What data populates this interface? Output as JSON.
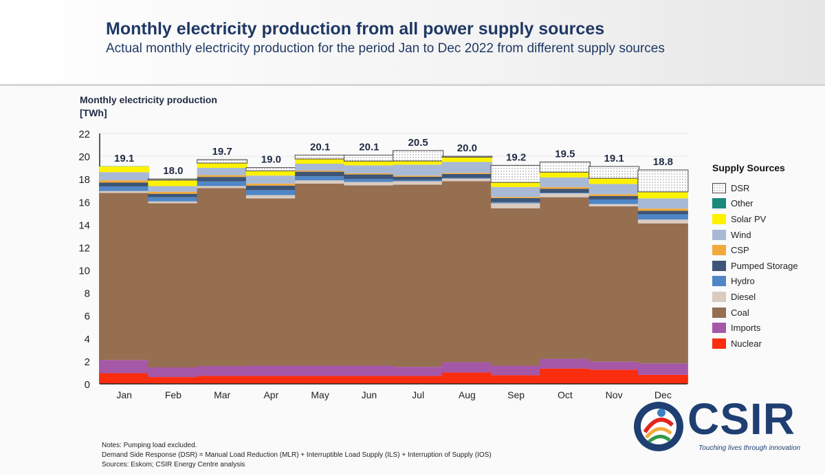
{
  "header": {
    "title": "Monthly electricity production from all power supply sources",
    "subtitle": "Actual monthly electricity production for the period Jan to Dec 2022 from different supply sources"
  },
  "chart_data": {
    "type": "bar",
    "stacked": true,
    "ylabel_line1": "Monthly electricity  production",
    "ylabel_line2": "[TWh]",
    "ylim": [
      0,
      22
    ],
    "yticks": [
      0,
      2,
      4,
      6,
      8,
      10,
      12,
      14,
      16,
      18,
      20,
      22
    ],
    "grid": true,
    "legend_title": "Supply Sources",
    "legend_position": "right",
    "categories": [
      "Jan",
      "Feb",
      "Mar",
      "Apr",
      "May",
      "Jun",
      "Jul",
      "Aug",
      "Sep",
      "Oct",
      "Nov",
      "Dec"
    ],
    "totals": [
      "19.1",
      "18.0",
      "19.7",
      "19.0",
      "20.1",
      "20.1",
      "20.5",
      "20.0",
      "19.2",
      "19.5",
      "19.1",
      "18.8"
    ],
    "series": [
      {
        "name": "Nuclear",
        "color": "#fa2d0f",
        "values": [
          0.94,
          0.6,
          0.7,
          0.7,
          0.7,
          0.7,
          0.7,
          1.0,
          0.76,
          1.35,
          1.25,
          0.8
        ]
      },
      {
        "name": "Imports",
        "color": "#a557a8",
        "values": [
          1.16,
          0.85,
          0.87,
          0.9,
          0.9,
          0.9,
          0.8,
          0.9,
          0.84,
          0.85,
          0.7,
          1.0
        ]
      },
      {
        "name": "Coal",
        "color": "#966e50",
        "values": [
          14.68,
          14.42,
          15.63,
          14.7,
          16.0,
          15.84,
          16.0,
          15.9,
          13.83,
          14.2,
          13.65,
          12.3
        ]
      },
      {
        "name": "Diesel",
        "color": "#d9cbc0",
        "values": [
          0.16,
          0.16,
          0.18,
          0.28,
          0.28,
          0.3,
          0.3,
          0.24,
          0.44,
          0.34,
          0.2,
          0.34
        ]
      },
      {
        "name": "Hydro",
        "color": "#4f86c6",
        "values": [
          0.4,
          0.37,
          0.4,
          0.44,
          0.36,
          0.26,
          0.1,
          0.06,
          0.1,
          0.06,
          0.4,
          0.46
        ]
      },
      {
        "name": "Pumped Storage",
        "color": "#3d5577",
        "values": [
          0.34,
          0.3,
          0.4,
          0.4,
          0.4,
          0.4,
          0.3,
          0.34,
          0.36,
          0.34,
          0.3,
          0.3
        ]
      },
      {
        "name": "CSP",
        "color": "#f2a93b",
        "values": [
          0.2,
          0.18,
          0.16,
          0.18,
          0.1,
          0.1,
          0.1,
          0.1,
          0.1,
          0.16,
          0.16,
          0.2
        ]
      },
      {
        "name": "Wind",
        "color": "#a8b9d6",
        "values": [
          0.72,
          0.5,
          0.64,
          0.7,
          0.6,
          0.7,
          0.96,
          0.96,
          0.87,
          0.84,
          0.9,
          0.9
        ]
      },
      {
        "name": "Solar PV",
        "color": "#fff200",
        "values": [
          0.5,
          0.5,
          0.4,
          0.4,
          0.4,
          0.35,
          0.3,
          0.4,
          0.38,
          0.44,
          0.48,
          0.55
        ]
      },
      {
        "name": "Other",
        "color": "#1a8a7a",
        "values": [
          0.02,
          0.02,
          0.02,
          0.02,
          0.02,
          0.02,
          0.02,
          0.02,
          0.02,
          0.02,
          0.02,
          0.02
        ]
      },
      {
        "name": "DSR",
        "color": "#ffffff",
        "values": [
          0.0,
          0.1,
          0.3,
          0.28,
          0.34,
          0.53,
          0.92,
          0.08,
          1.5,
          0.9,
          1.04,
          1.93
        ]
      }
    ]
  },
  "notes": [
    "Notes: Pumping load excluded.",
    "Demand Side Response (DSR) = Manual Load Reduction (MLR) + Interruptible Load Supply (ILS) + Interruption of Supply (IOS)",
    "Sources: Eskom; CSIR Energy Centre analysis"
  ],
  "logo": {
    "text": "CSIR",
    "tagline": "Touching lives through innovation"
  }
}
